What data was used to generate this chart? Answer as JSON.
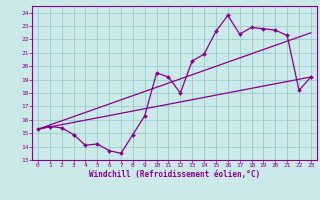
{
  "title": "",
  "xlabel": "Windchill (Refroidissement éolien,°C)",
  "bg_color": "#cce9e9",
  "line_color": "#880088",
  "grid_color": "#99cccc",
  "xlim": [
    -0.5,
    23.5
  ],
  "ylim": [
    13,
    24.5
  ],
  "xticks": [
    0,
    1,
    2,
    3,
    4,
    5,
    6,
    7,
    8,
    9,
    10,
    11,
    12,
    13,
    14,
    15,
    16,
    17,
    18,
    19,
    20,
    21,
    22,
    23
  ],
  "yticks": [
    13,
    14,
    15,
    16,
    17,
    18,
    19,
    20,
    21,
    22,
    23,
    24
  ],
  "line1_x": [
    0,
    1,
    2,
    3,
    4,
    5,
    6,
    7,
    8,
    9,
    10,
    11,
    12,
    13,
    14,
    15,
    16,
    17,
    18,
    19,
    20,
    21,
    22,
    23
  ],
  "line1_y": [
    15.3,
    15.5,
    15.4,
    14.9,
    14.1,
    14.2,
    13.7,
    13.5,
    14.9,
    16.3,
    19.5,
    19.2,
    18.0,
    20.4,
    20.9,
    22.6,
    23.8,
    22.4,
    22.9,
    22.8,
    22.7,
    22.3,
    18.2,
    19.2
  ],
  "line2_x": [
    0,
    23
  ],
  "line2_y": [
    15.3,
    19.2
  ],
  "line3_x": [
    0,
    23
  ],
  "line3_y": [
    15.3,
    22.5
  ]
}
